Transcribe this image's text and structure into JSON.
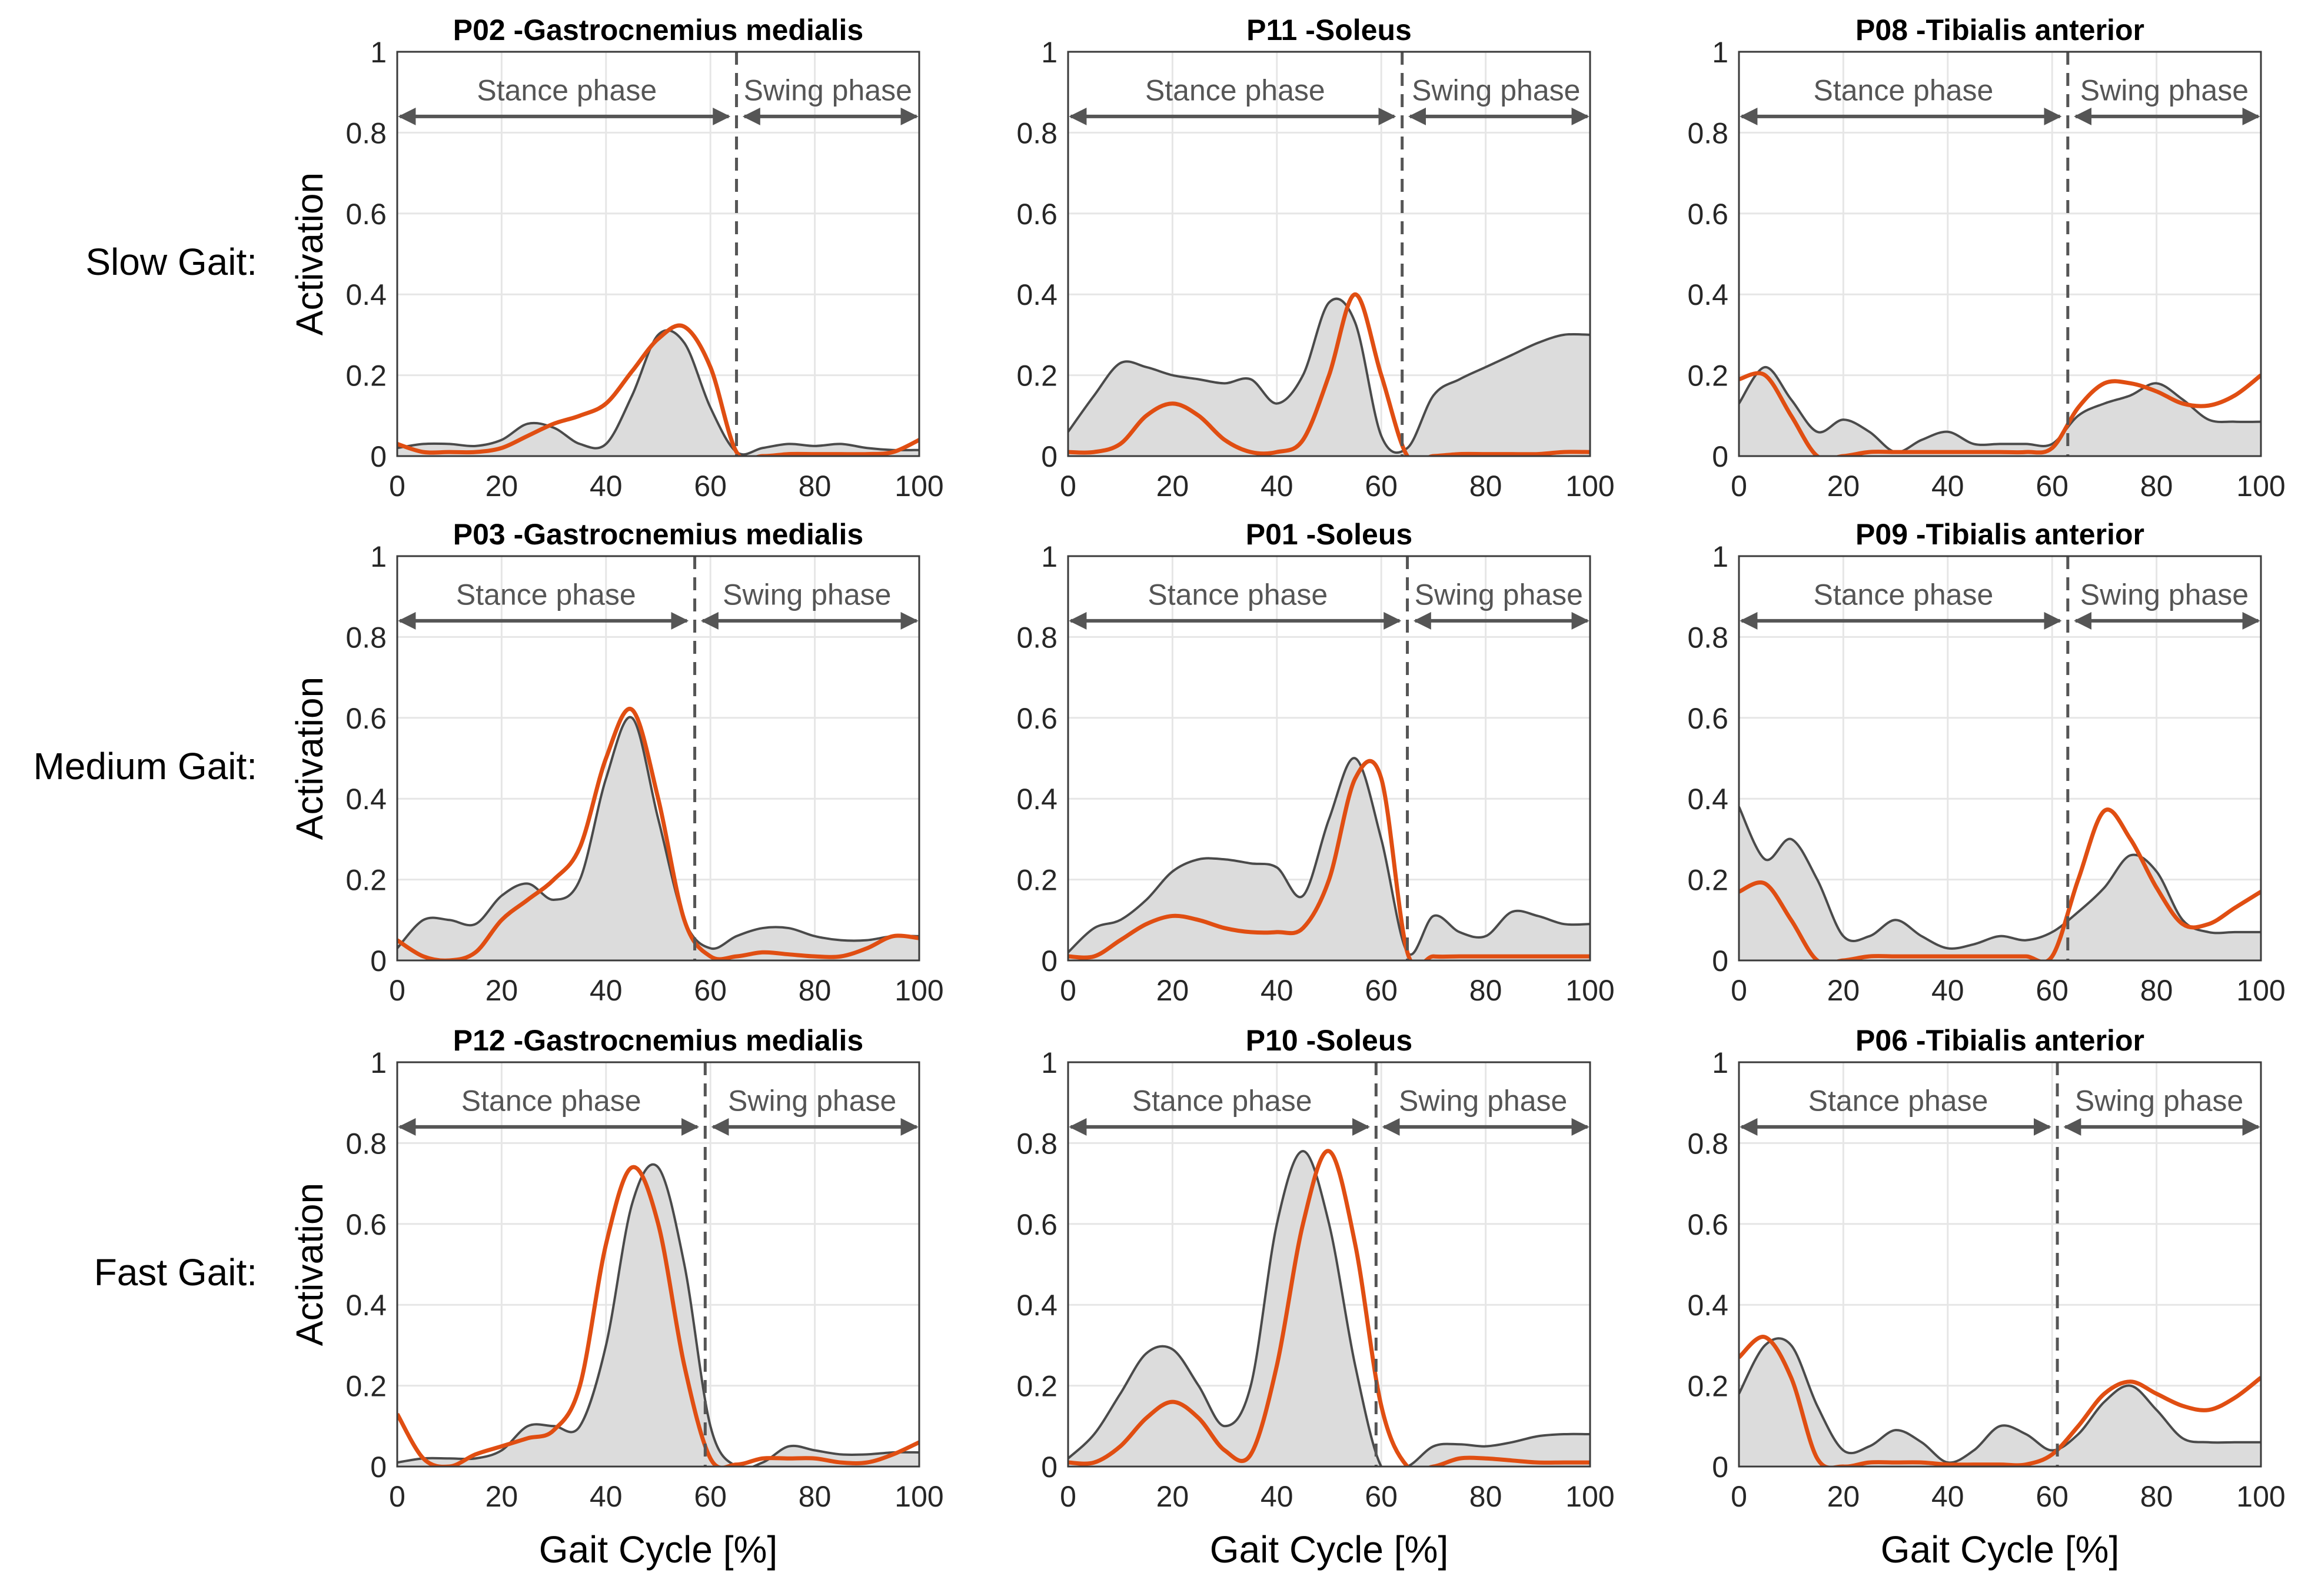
{
  "chart_data": {
    "type": "line",
    "layout": "3x3 grid",
    "row_labels": [
      "Slow Gait:",
      "Medium Gait:",
      "Fast Gait:"
    ],
    "ylabel": "Activation",
    "xlabel": "Gait Cycle [%]",
    "xlim": [
      0,
      100
    ],
    "ylim": [
      0,
      1
    ],
    "xticks": [
      "0",
      "20",
      "40",
      "60",
      "80",
      "100"
    ],
    "yticks": [
      "0",
      "0.2",
      "0.4",
      "0.6",
      "0.8",
      "1"
    ],
    "grid": true,
    "phase_labels": {
      "stance": "Stance phase",
      "swing": "Swing phase"
    },
    "colors": {
      "reference": "#4a4a4a",
      "reference_fill": "#dcdcdc",
      "model": "#e04e12",
      "phase": "#555555"
    },
    "x": [
      0,
      5,
      10,
      15,
      20,
      25,
      30,
      35,
      40,
      45,
      50,
      55,
      60,
      65,
      70,
      75,
      80,
      85,
      90,
      95,
      100
    ],
    "panels": [
      {
        "title": "P02 -Gastrocnemius medialis",
        "row": 0,
        "col": 0,
        "toe_off": 65,
        "gray": [
          0.02,
          0.03,
          0.03,
          0.025,
          0.04,
          0.08,
          0.07,
          0.03,
          0.03,
          0.15,
          0.3,
          0.28,
          0.12,
          0.01,
          0.02,
          0.03,
          0.025,
          0.03,
          0.02,
          0.015,
          0.015
        ],
        "orange": [
          0.03,
          0.01,
          0.01,
          0.01,
          0.02,
          0.05,
          0.08,
          0.1,
          0.13,
          0.21,
          0.29,
          0.32,
          0.22,
          0.01,
          0.0,
          0.005,
          0.005,
          0.005,
          0.005,
          0.01,
          0.04
        ]
      },
      {
        "title": "P11 -Soleus",
        "row": 0,
        "col": 1,
        "toe_off": 64,
        "gray": [
          0.06,
          0.15,
          0.23,
          0.22,
          0.2,
          0.19,
          0.18,
          0.19,
          0.13,
          0.2,
          0.38,
          0.33,
          0.05,
          0.02,
          0.15,
          0.19,
          0.22,
          0.25,
          0.28,
          0.3,
          0.3
        ],
        "orange": [
          0.01,
          0.01,
          0.03,
          0.1,
          0.13,
          0.1,
          0.04,
          0.01,
          0.01,
          0.04,
          0.2,
          0.4,
          0.2,
          0.0,
          0.0,
          0.005,
          0.005,
          0.005,
          0.005,
          0.01,
          0.01
        ]
      },
      {
        "title": "P08 -Tibialis anterior",
        "row": 0,
        "col": 2,
        "toe_off": 63,
        "gray": [
          0.13,
          0.22,
          0.14,
          0.06,
          0.09,
          0.06,
          0.01,
          0.04,
          0.06,
          0.03,
          0.03,
          0.03,
          0.03,
          0.1,
          0.13,
          0.15,
          0.18,
          0.14,
          0.09,
          0.085,
          0.085
        ],
        "orange": [
          0.19,
          0.2,
          0.1,
          0.0,
          0.0,
          0.01,
          0.01,
          0.01,
          0.01,
          0.01,
          0.01,
          0.01,
          0.02,
          0.12,
          0.18,
          0.18,
          0.16,
          0.13,
          0.125,
          0.15,
          0.2
        ]
      },
      {
        "title": "P03 -Gastrocnemius medialis",
        "row": 1,
        "col": 0,
        "toe_off": 57,
        "gray": [
          0.03,
          0.1,
          0.1,
          0.09,
          0.16,
          0.19,
          0.15,
          0.2,
          0.45,
          0.6,
          0.35,
          0.1,
          0.03,
          0.06,
          0.08,
          0.08,
          0.06,
          0.05,
          0.05,
          0.06,
          0.06
        ],
        "orange": [
          0.05,
          0.01,
          0.0,
          0.02,
          0.1,
          0.15,
          0.2,
          0.28,
          0.5,
          0.62,
          0.4,
          0.1,
          0.01,
          0.01,
          0.02,
          0.015,
          0.01,
          0.01,
          0.03,
          0.06,
          0.055
        ]
      },
      {
        "title": "P01 -Soleus",
        "row": 1,
        "col": 1,
        "toe_off": 65,
        "gray": [
          0.02,
          0.08,
          0.1,
          0.15,
          0.22,
          0.25,
          0.25,
          0.24,
          0.23,
          0.16,
          0.35,
          0.5,
          0.3,
          0.02,
          0.11,
          0.07,
          0.06,
          0.12,
          0.11,
          0.09,
          0.09
        ],
        "orange": [
          0.01,
          0.01,
          0.05,
          0.09,
          0.11,
          0.1,
          0.08,
          0.07,
          0.07,
          0.08,
          0.2,
          0.45,
          0.45,
          0.02,
          0.01,
          0.01,
          0.01,
          0.01,
          0.01,
          0.01,
          0.01
        ]
      },
      {
        "title": "P09 -Tibialis anterior",
        "row": 1,
        "col": 2,
        "toe_off": 63,
        "gray": [
          0.38,
          0.25,
          0.3,
          0.2,
          0.06,
          0.06,
          0.1,
          0.06,
          0.03,
          0.04,
          0.06,
          0.05,
          0.07,
          0.12,
          0.18,
          0.26,
          0.22,
          0.1,
          0.07,
          0.07,
          0.07
        ],
        "orange": [
          0.17,
          0.19,
          0.1,
          0.0,
          0.0,
          0.01,
          0.01,
          0.01,
          0.01,
          0.01,
          0.01,
          0.01,
          0.01,
          0.2,
          0.37,
          0.3,
          0.18,
          0.09,
          0.09,
          0.13,
          0.17
        ]
      },
      {
        "title": "P12 -Gastrocnemius medialis",
        "row": 2,
        "col": 0,
        "toe_off": 59,
        "gray": [
          0.01,
          0.02,
          0.02,
          0.02,
          0.04,
          0.1,
          0.1,
          0.1,
          0.3,
          0.65,
          0.74,
          0.5,
          0.1,
          0.0,
          0.01,
          0.05,
          0.04,
          0.03,
          0.03,
          0.035,
          0.035
        ],
        "orange": [
          0.13,
          0.02,
          0.0,
          0.03,
          0.05,
          0.07,
          0.09,
          0.2,
          0.55,
          0.74,
          0.6,
          0.25,
          0.02,
          0.005,
          0.02,
          0.02,
          0.02,
          0.01,
          0.01,
          0.03,
          0.06
        ]
      },
      {
        "title": "P10 -Soleus",
        "row": 2,
        "col": 1,
        "toe_off": 59,
        "gray": [
          0.02,
          0.08,
          0.18,
          0.28,
          0.29,
          0.2,
          0.1,
          0.2,
          0.6,
          0.78,
          0.6,
          0.25,
          0.0,
          0.0,
          0.05,
          0.055,
          0.05,
          0.06,
          0.075,
          0.08,
          0.08
        ],
        "orange": [
          0.01,
          0.01,
          0.05,
          0.12,
          0.16,
          0.12,
          0.04,
          0.03,
          0.25,
          0.6,
          0.78,
          0.55,
          0.15,
          0.0,
          0.0,
          0.02,
          0.02,
          0.015,
          0.01,
          0.01,
          0.01
        ]
      },
      {
        "title": "P06 -Tibialis anterior",
        "row": 2,
        "col": 2,
        "toe_off": 61,
        "gray": [
          0.18,
          0.3,
          0.3,
          0.15,
          0.04,
          0.05,
          0.09,
          0.06,
          0.01,
          0.04,
          0.1,
          0.08,
          0.04,
          0.08,
          0.16,
          0.2,
          0.14,
          0.07,
          0.06,
          0.06,
          0.06
        ],
        "orange": [
          0.27,
          0.32,
          0.22,
          0.02,
          0.0,
          0.01,
          0.01,
          0.01,
          0.005,
          0.005,
          0.005,
          0.005,
          0.03,
          0.1,
          0.18,
          0.21,
          0.18,
          0.15,
          0.14,
          0.17,
          0.22
        ]
      }
    ]
  }
}
